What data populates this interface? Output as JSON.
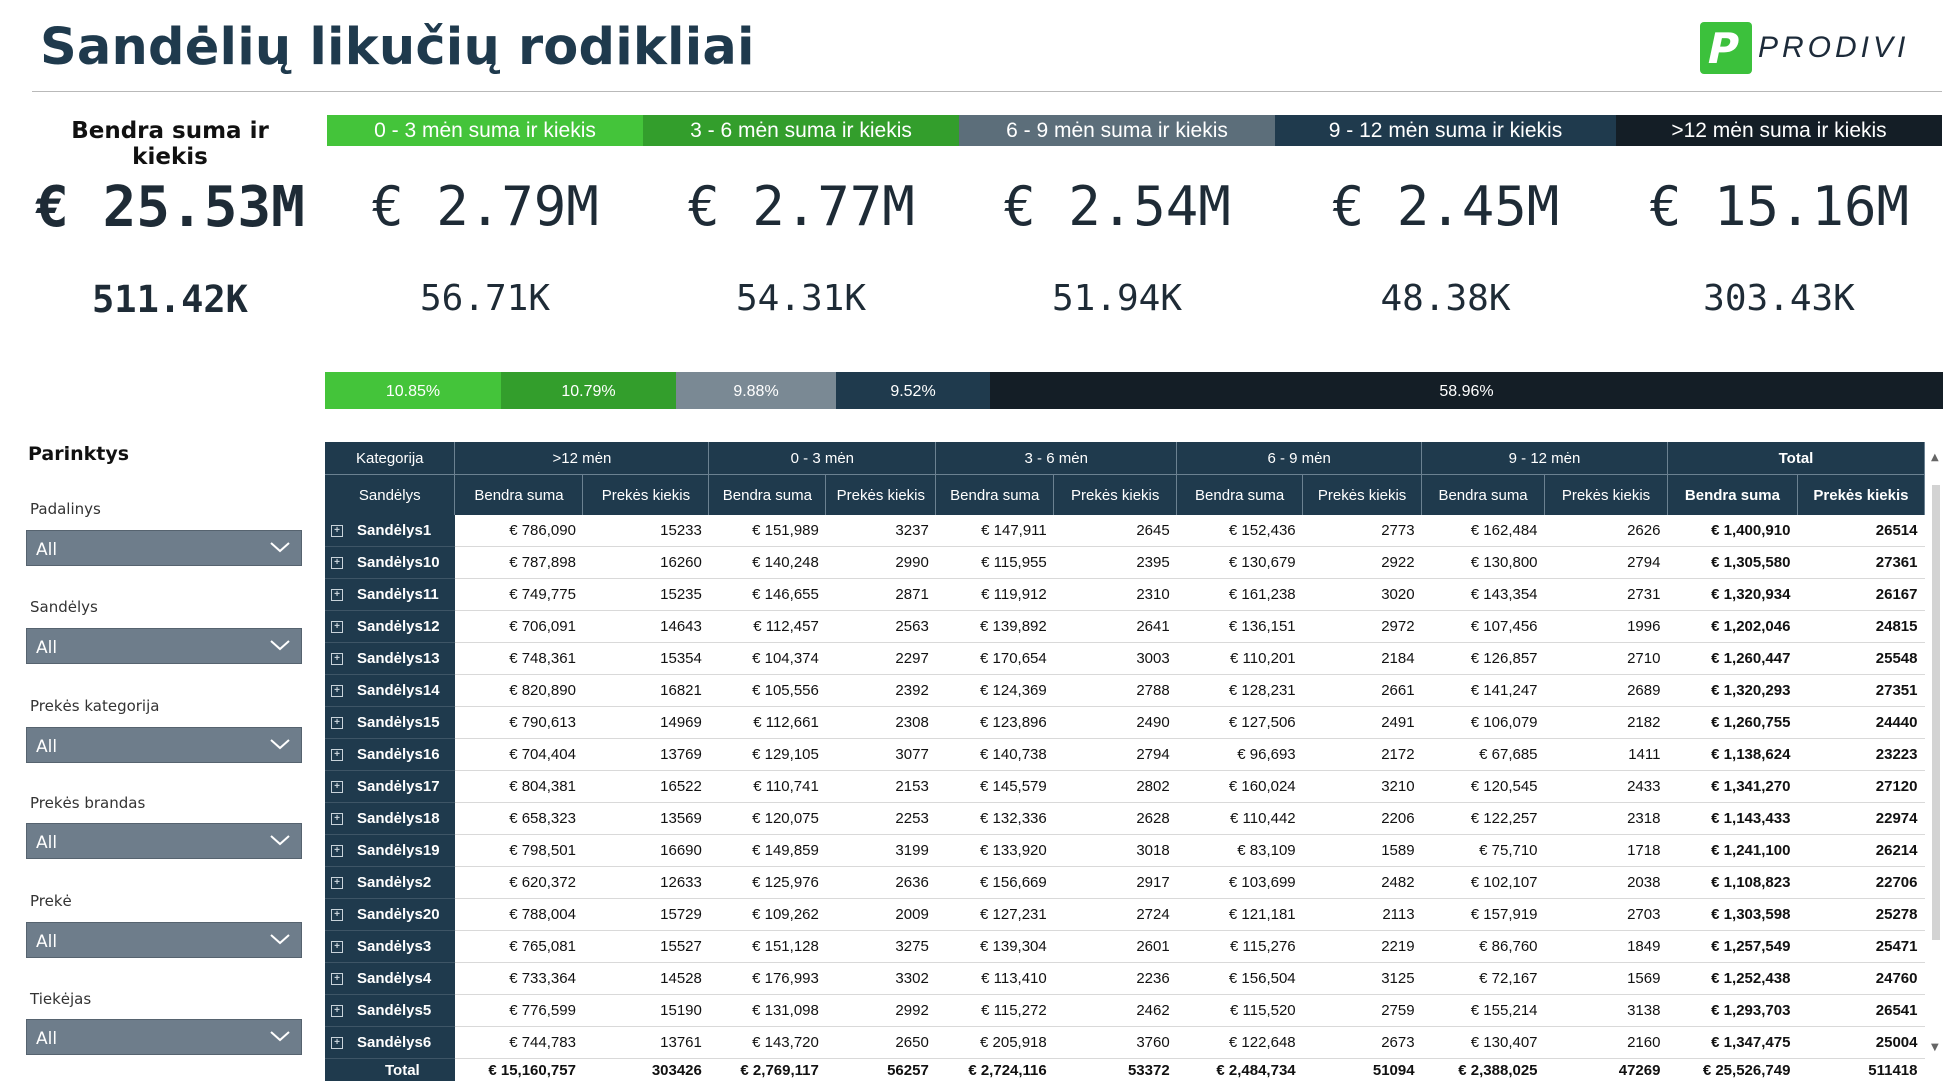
{
  "page": {
    "title": "Sandėlių likučių rodikliai",
    "logo_text": "PRODIVI",
    "logo_mark": "P"
  },
  "kpis": [
    {
      "label": "Bendra suma ir kiekis",
      "amount": "€ 25.53M",
      "qty": "511.42K"
    },
    {
      "label": "0 - 3 mėn suma ir kiekis",
      "amount": "€ 2.79M",
      "qty": "56.71K",
      "color": "#44c43a"
    },
    {
      "label": "3 - 6 mėn suma ir kiekis",
      "amount": "€ 2.77M",
      "qty": "54.31K",
      "color": "#339e2c"
    },
    {
      "label": "6 - 9 mėn suma ir kiekis",
      "amount": "€ 2.54M",
      "qty": "51.94K",
      "color": "#5c6e7a"
    },
    {
      "label": "9 - 12 mėn suma ir kiekis",
      "amount": "€ 2.45M",
      "qty": "48.38K",
      "color": "#1f3a4d"
    },
    {
      "label": ">12 mėn suma ir kiekis",
      "amount": "€ 15.16M",
      "qty": "303.43K",
      "color": "#141e26"
    }
  ],
  "percent_bar": [
    {
      "label": "10.85%",
      "value": 10.85,
      "color": "#44c43a"
    },
    {
      "label": "10.79%",
      "value": 10.79,
      "color": "#339e2c"
    },
    {
      "label": "9.88%",
      "value": 9.88,
      "color": "#7a8994"
    },
    {
      "label": "9.52%",
      "value": 9.52,
      "color": "#1f3a4d"
    },
    {
      "label": "58.96%",
      "value": 58.96,
      "color": "#141e26"
    }
  ],
  "filters": {
    "title": "Parinktys",
    "items": [
      {
        "label": "Padalinys",
        "value": "All"
      },
      {
        "label": "Sandėlys",
        "value": "All"
      },
      {
        "label": "Prekės kategorija",
        "value": "All"
      },
      {
        "label": "Prekės brandas",
        "value": "All"
      },
      {
        "label": "Prekė",
        "value": "All"
      },
      {
        "label": "Tiekėjas",
        "value": "All"
      }
    ]
  },
  "table": {
    "corner_top": "Kategorija",
    "corner_bottom": "Sandėlys",
    "groups": [
      ">12 mėn",
      "0 - 3 mėn",
      "3 - 6 mėn",
      "6 - 9 mėn",
      "9 - 12 mėn",
      "Total"
    ],
    "subcols": [
      "Bendra suma",
      "Prekės kiekis"
    ],
    "rows": [
      {
        "name": "Sandėlys1",
        "v": [
          "€ 786,090",
          "15233",
          "€ 151,989",
          "3237",
          "€ 147,911",
          "2645",
          "€ 152,436",
          "2773",
          "€ 162,484",
          "2626",
          "€ 1,400,910",
          "26514"
        ]
      },
      {
        "name": "Sandėlys10",
        "v": [
          "€ 787,898",
          "16260",
          "€ 140,248",
          "2990",
          "€ 115,955",
          "2395",
          "€ 130,679",
          "2922",
          "€ 130,800",
          "2794",
          "€ 1,305,580",
          "27361"
        ]
      },
      {
        "name": "Sandėlys11",
        "v": [
          "€ 749,775",
          "15235",
          "€ 146,655",
          "2871",
          "€ 119,912",
          "2310",
          "€ 161,238",
          "3020",
          "€ 143,354",
          "2731",
          "€ 1,320,934",
          "26167"
        ]
      },
      {
        "name": "Sandėlys12",
        "v": [
          "€ 706,091",
          "14643",
          "€ 112,457",
          "2563",
          "€ 139,892",
          "2641",
          "€ 136,151",
          "2972",
          "€ 107,456",
          "1996",
          "€ 1,202,046",
          "24815"
        ]
      },
      {
        "name": "Sandėlys13",
        "v": [
          "€ 748,361",
          "15354",
          "€ 104,374",
          "2297",
          "€ 170,654",
          "3003",
          "€ 110,201",
          "2184",
          "€ 126,857",
          "2710",
          "€ 1,260,447",
          "25548"
        ]
      },
      {
        "name": "Sandėlys14",
        "v": [
          "€ 820,890",
          "16821",
          "€ 105,556",
          "2392",
          "€ 124,369",
          "2788",
          "€ 128,231",
          "2661",
          "€ 141,247",
          "2689",
          "€ 1,320,293",
          "27351"
        ]
      },
      {
        "name": "Sandėlys15",
        "v": [
          "€ 790,613",
          "14969",
          "€ 112,661",
          "2308",
          "€ 123,896",
          "2490",
          "€ 127,506",
          "2491",
          "€ 106,079",
          "2182",
          "€ 1,260,755",
          "24440"
        ]
      },
      {
        "name": "Sandėlys16",
        "v": [
          "€ 704,404",
          "13769",
          "€ 129,105",
          "3077",
          "€ 140,738",
          "2794",
          "€ 96,693",
          "2172",
          "€ 67,685",
          "1411",
          "€ 1,138,624",
          "23223"
        ]
      },
      {
        "name": "Sandėlys17",
        "v": [
          "€ 804,381",
          "16522",
          "€ 110,741",
          "2153",
          "€ 145,579",
          "2802",
          "€ 160,024",
          "3210",
          "€ 120,545",
          "2433",
          "€ 1,341,270",
          "27120"
        ]
      },
      {
        "name": "Sandėlys18",
        "v": [
          "€ 658,323",
          "13569",
          "€ 120,075",
          "2253",
          "€ 132,336",
          "2628",
          "€ 110,442",
          "2206",
          "€ 122,257",
          "2318",
          "€ 1,143,433",
          "22974"
        ]
      },
      {
        "name": "Sandėlys19",
        "v": [
          "€ 798,501",
          "16690",
          "€ 149,859",
          "3199",
          "€ 133,920",
          "3018",
          "€ 83,109",
          "1589",
          "€ 75,710",
          "1718",
          "€ 1,241,100",
          "26214"
        ]
      },
      {
        "name": "Sandėlys2",
        "v": [
          "€ 620,372",
          "12633",
          "€ 125,976",
          "2636",
          "€ 156,669",
          "2917",
          "€ 103,699",
          "2482",
          "€ 102,107",
          "2038",
          "€ 1,108,823",
          "22706"
        ]
      },
      {
        "name": "Sandėlys20",
        "v": [
          "€ 788,004",
          "15729",
          "€ 109,262",
          "2009",
          "€ 127,231",
          "2724",
          "€ 121,181",
          "2113",
          "€ 157,919",
          "2703",
          "€ 1,303,598",
          "25278"
        ]
      },
      {
        "name": "Sandėlys3",
        "v": [
          "€ 765,081",
          "15527",
          "€ 151,128",
          "3275",
          "€ 139,304",
          "2601",
          "€ 115,276",
          "2219",
          "€ 86,760",
          "1849",
          "€ 1,257,549",
          "25471"
        ]
      },
      {
        "name": "Sandėlys4",
        "v": [
          "€ 733,364",
          "14528",
          "€ 176,993",
          "3302",
          "€ 113,410",
          "2236",
          "€ 156,504",
          "3125",
          "€ 72,167",
          "1569",
          "€ 1,252,438",
          "24760"
        ]
      },
      {
        "name": "Sandėlys5",
        "v": [
          "€ 776,599",
          "15190",
          "€ 131,098",
          "2992",
          "€ 115,272",
          "2462",
          "€ 115,520",
          "2759",
          "€ 155,214",
          "3138",
          "€ 1,293,703",
          "26541"
        ]
      },
      {
        "name": "Sandėlys6",
        "v": [
          "€ 744,783",
          "13761",
          "€ 143,720",
          "2650",
          "€ 205,918",
          "3760",
          "€ 122,648",
          "2673",
          "€ 130,407",
          "2160",
          "€ 1,347,475",
          "25004"
        ]
      }
    ],
    "total": {
      "name": "Total",
      "v": [
        "€ 15,160,757",
        "303426",
        "€ 2,769,117",
        "56257",
        "€ 2,724,116",
        "53372",
        "€ 2,484,734",
        "51094",
        "€ 2,388,025",
        "47269",
        "€ 25,526,749",
        "511418"
      ]
    }
  }
}
